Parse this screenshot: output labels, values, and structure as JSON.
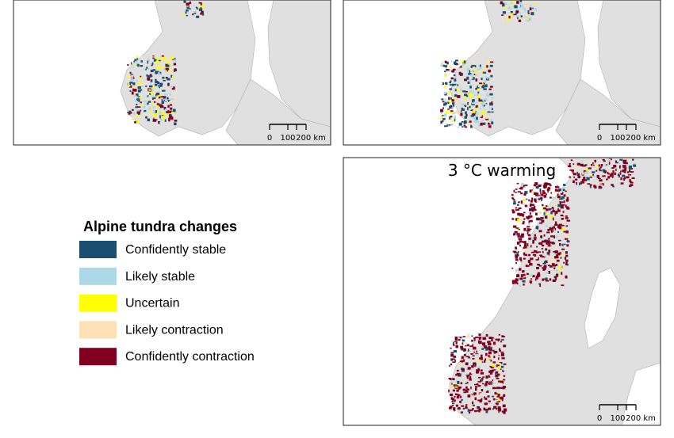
{
  "legend": {
    "title": "Alpine tundra changes",
    "items": [
      {
        "label": "Confidently stable",
        "color": "#1a4f72"
      },
      {
        "label": "Likely stable",
        "color": "#add8e6"
      },
      {
        "label": "Uncertain",
        "color": "#ffff00"
      },
      {
        "label": "Likely contraction",
        "color": "#fde0b5"
      },
      {
        "label": "Confidently contraction",
        "color": "#800020"
      }
    ]
  },
  "panels": [
    {
      "scale_labels": [
        "0",
        "100",
        "200 km"
      ]
    },
    {
      "scale_labels": [
        "0",
        "100",
        "200 km"
      ]
    },
    {
      "title": "3 °C warming",
      "scale_labels": [
        "0",
        "100",
        "200 km"
      ]
    }
  ]
}
